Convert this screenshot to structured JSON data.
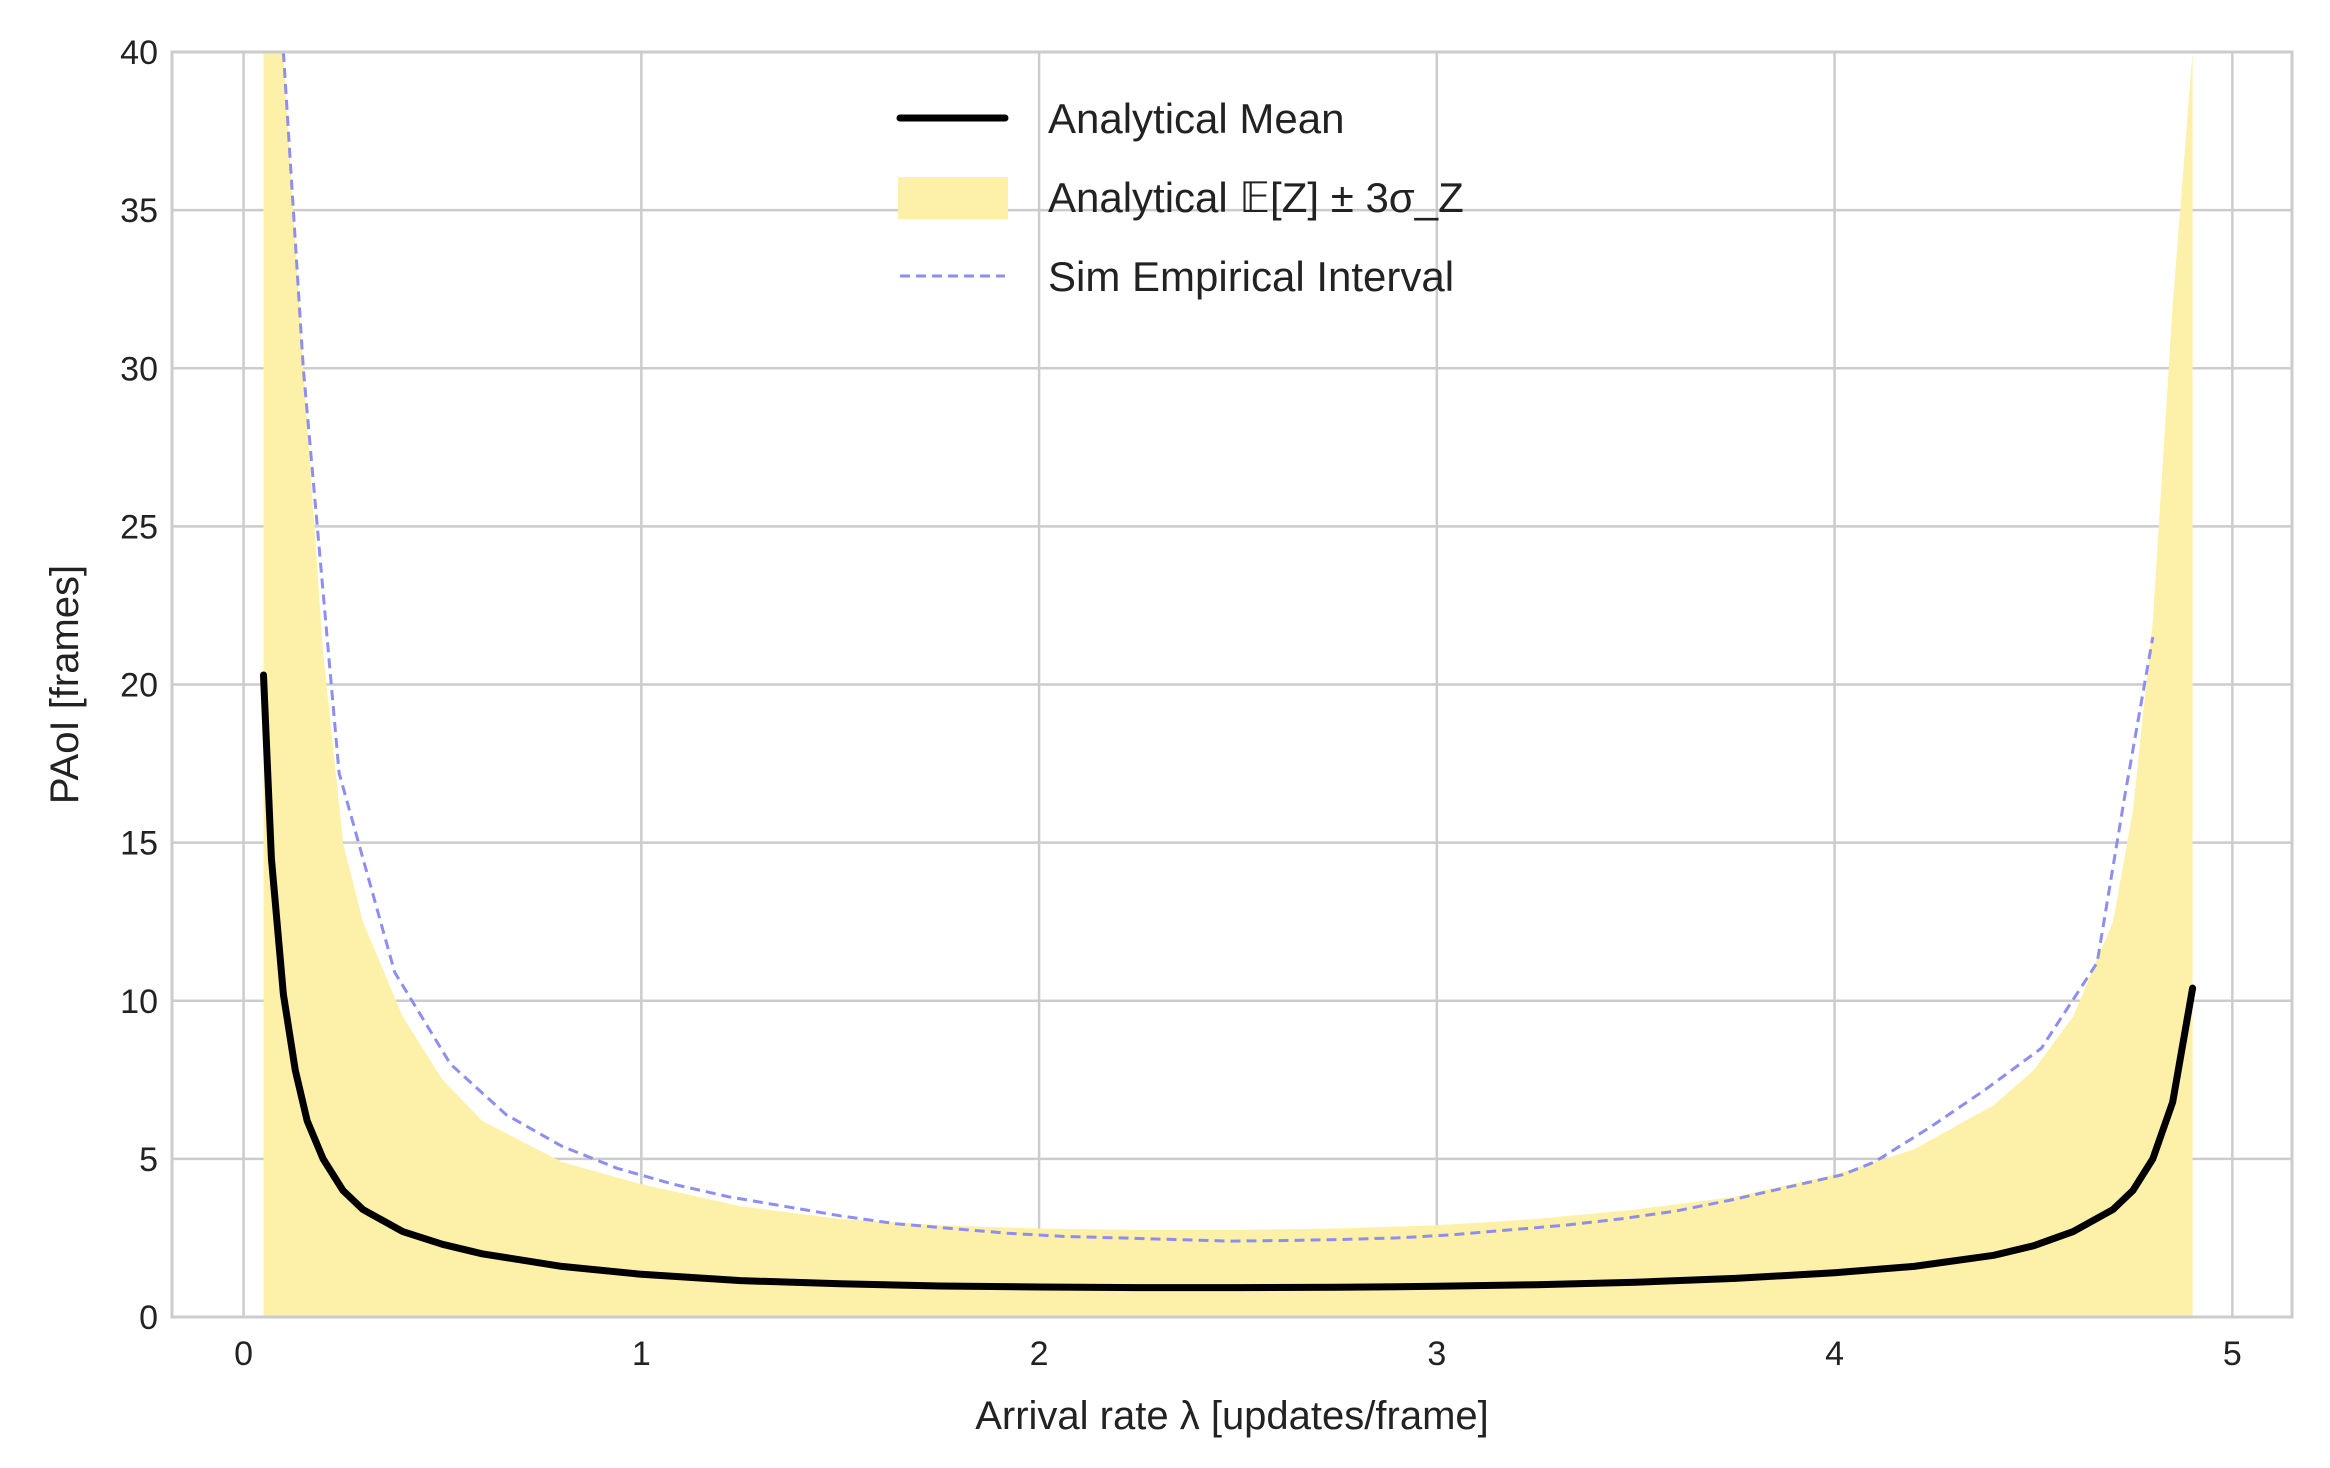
{
  "chart_data": {
    "type": "line",
    "xlabel": "Arrival rate λ [updates/frame]",
    "ylabel": "PAoI [frames]",
    "xlim": [
      -0.18,
      5.15
    ],
    "ylim": [
      0,
      40
    ],
    "xticks": [
      0,
      1,
      2,
      3,
      4,
      5
    ],
    "yticks": [
      0,
      5,
      10,
      15,
      20,
      25,
      30,
      35,
      40
    ],
    "grid": true,
    "legend_position": "top-center",
    "series": [
      {
        "name": "Analytical Mean",
        "kind": "line",
        "color": "#000000",
        "x": [
          0.05,
          0.07,
          0.1,
          0.13,
          0.16,
          0.2,
          0.25,
          0.3,
          0.4,
          0.5,
          0.6,
          0.8,
          1.0,
          1.25,
          1.5,
          1.75,
          2.0,
          2.25,
          2.5,
          2.75,
          3.0,
          3.25,
          3.5,
          3.75,
          4.0,
          4.2,
          4.4,
          4.5,
          4.6,
          4.7,
          4.75,
          4.8,
          4.85,
          4.9
        ],
        "y": [
          20.3,
          14.5,
          10.2,
          7.8,
          6.2,
          5.0,
          4.0,
          3.4,
          2.7,
          2.3,
          2.0,
          1.6,
          1.35,
          1.15,
          1.05,
          0.98,
          0.95,
          0.93,
          0.93,
          0.94,
          0.97,
          1.02,
          1.1,
          1.22,
          1.4,
          1.6,
          1.95,
          2.25,
          2.7,
          3.4,
          4.0,
          5.0,
          6.8,
          10.4
        ]
      },
      {
        "name": "Analytical 𝔼[Z] ± 3σ_Z",
        "kind": "band",
        "color": "#fdf0a8",
        "x": [
          0.05,
          0.1,
          0.15,
          0.2,
          0.25,
          0.3,
          0.4,
          0.5,
          0.6,
          0.8,
          1.0,
          1.25,
          1.5,
          1.75,
          2.0,
          2.25,
          2.5,
          2.75,
          3.0,
          3.25,
          3.5,
          3.75,
          4.0,
          4.2,
          4.4,
          4.5,
          4.6,
          4.7,
          4.75,
          4.8,
          4.85,
          4.9
        ],
        "upper": [
          40,
          40,
          30,
          21,
          15,
          12.5,
          9.5,
          7.5,
          6.2,
          4.9,
          4.2,
          3.5,
          3.1,
          2.9,
          2.8,
          2.75,
          2.75,
          2.8,
          2.9,
          3.1,
          3.4,
          3.8,
          4.5,
          5.3,
          6.7,
          7.8,
          9.5,
          12.5,
          16,
          22,
          32,
          40
        ],
        "lower": [
          0,
          0,
          0,
          0,
          0,
          0,
          0,
          0,
          0,
          0,
          0,
          0,
          0,
          0,
          0,
          0,
          0,
          0,
          0,
          0,
          0,
          0,
          0,
          0,
          0,
          0,
          0,
          0,
          0,
          0,
          0,
          0
        ]
      },
      {
        "name": "Sim Empirical Interval",
        "kind": "dashed-line",
        "color": "#8e8ef0",
        "x": [
          0.1,
          0.15,
          0.24,
          0.38,
          0.52,
          0.66,
          0.8,
          0.94,
          1.08,
          1.22,
          1.36,
          1.5,
          1.64,
          1.78,
          1.92,
          2.06,
          2.2,
          2.34,
          2.48,
          2.62,
          2.76,
          2.9,
          3.04,
          3.18,
          3.32,
          3.46,
          3.6,
          3.74,
          3.88,
          4.02,
          4.1,
          4.24,
          4.38,
          4.52,
          4.66,
          4.73,
          4.8
        ],
        "y": [
          40,
          30,
          17.2,
          10.9,
          8.0,
          6.4,
          5.4,
          4.7,
          4.2,
          3.8,
          3.5,
          3.2,
          2.95,
          2.8,
          2.65,
          2.55,
          2.5,
          2.45,
          2.4,
          2.42,
          2.45,
          2.5,
          2.6,
          2.75,
          2.9,
          3.1,
          3.35,
          3.7,
          4.1,
          4.5,
          4.9,
          6.0,
          7.2,
          8.5,
          11.2,
          16.5,
          21.5
        ]
      }
    ]
  }
}
